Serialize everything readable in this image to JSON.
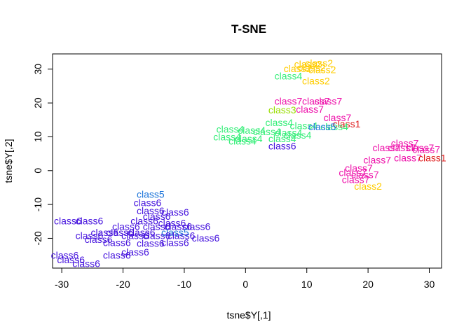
{
  "chart_data": {
    "type": "scatter",
    "title": "T-SNE",
    "xlabel": "tsne$Y[,1]",
    "ylabel": "tsne$Y[,2]",
    "xlim": [
      -31.5,
      32
    ],
    "ylim": [
      -28.8,
      34.5
    ],
    "xticks": [
      -30,
      -20,
      -10,
      0,
      10,
      20,
      30
    ],
    "yticks": [
      -20,
      -10,
      0,
      10,
      20,
      30
    ],
    "grid": false,
    "legend": "none",
    "class_colors": {
      "class1": "#DF1C1C",
      "class2": "#FFCC00",
      "class4": "#33EE77",
      "class5": "#1A73D9",
      "class6": "#4411DD",
      "class7": "#EE11AA",
      "class3": "#99DD00"
    },
    "points": [
      {
        "label": "class2",
        "x": 10.2,
        "y": 31.5,
        "cls": "class2"
      },
      {
        "label": "class2",
        "x": 12.0,
        "y": 31.8,
        "cls": "class2"
      },
      {
        "label": "class2",
        "x": 8.5,
        "y": 30.2,
        "cls": "class2"
      },
      {
        "label": "class2",
        "x": 10.8,
        "y": 30.5,
        "cls": "class2"
      },
      {
        "label": "class2",
        "x": 12.5,
        "y": 29.8,
        "cls": "class2"
      },
      {
        "label": "class2",
        "x": 11.5,
        "y": 26.5,
        "cls": "class2"
      },
      {
        "label": "class4",
        "x": 7.0,
        "y": 28.0,
        "cls": "class4"
      },
      {
        "label": "class7",
        "x": 7.0,
        "y": 20.5,
        "cls": "class7"
      },
      {
        "label": "class7",
        "x": 11.5,
        "y": 20.5,
        "cls": "class7"
      },
      {
        "label": "class7",
        "x": 13.5,
        "y": 20.5,
        "cls": "class7"
      },
      {
        "label": "class7",
        "x": 10.5,
        "y": 18.2,
        "cls": "class7"
      },
      {
        "label": "class3",
        "x": 6.0,
        "y": 18.0,
        "cls": "class3"
      },
      {
        "label": "class7",
        "x": 15.0,
        "y": 15.7,
        "cls": "class7"
      },
      {
        "label": "class1",
        "x": 16.5,
        "y": 13.8,
        "cls": "class1"
      },
      {
        "label": "class4",
        "x": 5.5,
        "y": 14.2,
        "cls": "class4"
      },
      {
        "label": "class4",
        "x": 9.5,
        "y": 13.3,
        "cls": "class4"
      },
      {
        "label": "class4",
        "x": 14.5,
        "y": 13.0,
        "cls": "class4"
      },
      {
        "label": "class5",
        "x": 12.5,
        "y": 13.0,
        "cls": "class5"
      },
      {
        "label": "class4",
        "x": -2.5,
        "y": 12.3,
        "cls": "class4"
      },
      {
        "label": "class4",
        "x": 1.0,
        "y": 12.0,
        "cls": "class4"
      },
      {
        "label": "class4",
        "x": 3.5,
        "y": 11.5,
        "cls": "class4"
      },
      {
        "label": "class4",
        "x": 7.0,
        "y": 11.2,
        "cls": "class4"
      },
      {
        "label": "class4",
        "x": 8.5,
        "y": 10.5,
        "cls": "class4"
      },
      {
        "label": "class4",
        "x": -3.0,
        "y": 10.0,
        "cls": "class4"
      },
      {
        "label": "class4",
        "x": 0.5,
        "y": 9.5,
        "cls": "class4"
      },
      {
        "label": "class4",
        "x": 6.0,
        "y": 9.5,
        "cls": "class4"
      },
      {
        "label": "class4",
        "x": -0.5,
        "y": 8.7,
        "cls": "class4"
      },
      {
        "label": "class6",
        "x": 6.0,
        "y": 7.3,
        "cls": "class6"
      },
      {
        "label": "class7",
        "x": 26.0,
        "y": 8.1,
        "cls": "class7"
      },
      {
        "label": "class7",
        "x": 23.0,
        "y": 6.8,
        "cls": "class7"
      },
      {
        "label": "class7",
        "x": 25.5,
        "y": 6.8,
        "cls": "class7"
      },
      {
        "label": "class7",
        "x": 28.5,
        "y": 6.8,
        "cls": "class7"
      },
      {
        "label": "class7",
        "x": 29.5,
        "y": 6.3,
        "cls": "class7"
      },
      {
        "label": "class7",
        "x": 26.5,
        "y": 3.8,
        "cls": "class7"
      },
      {
        "label": "class1",
        "x": 30.5,
        "y": 3.8,
        "cls": "class1"
      },
      {
        "label": "class7",
        "x": 21.5,
        "y": 3.2,
        "cls": "class7"
      },
      {
        "label": "class7",
        "x": 18.5,
        "y": 0.8,
        "cls": "class7"
      },
      {
        "label": "class7",
        "x": 17.5,
        "y": -0.6,
        "cls": "class7"
      },
      {
        "label": "class7",
        "x": 19.5,
        "y": -1.2,
        "cls": "class7"
      },
      {
        "label": "class7",
        "x": 18.0,
        "y": -2.6,
        "cls": "class7"
      },
      {
        "label": "class2",
        "x": 20.0,
        "y": -4.6,
        "cls": "class2"
      },
      {
        "label": "class5",
        "x": -15.5,
        "y": -7.0,
        "cls": "class5"
      },
      {
        "label": "class6",
        "x": -16.0,
        "y": -9.5,
        "cls": "class6"
      },
      {
        "label": "class6",
        "x": -15.5,
        "y": -11.8,
        "cls": "class6"
      },
      {
        "label": "class6",
        "x": -11.5,
        "y": -12.3,
        "cls": "class6"
      },
      {
        "label": "class6",
        "x": -14.5,
        "y": -13.5,
        "cls": "class6"
      },
      {
        "label": "class6",
        "x": -29.0,
        "y": -14.8,
        "cls": "class6"
      },
      {
        "label": "class6",
        "x": -25.5,
        "y": -14.8,
        "cls": "class6"
      },
      {
        "label": "class6",
        "x": -16.5,
        "y": -14.8,
        "cls": "class6"
      },
      {
        "label": "class6",
        "x": -12.0,
        "y": -15.5,
        "cls": "class6"
      },
      {
        "label": "class6",
        "x": -8.0,
        "y": -16.5,
        "cls": "class6"
      },
      {
        "label": "class6",
        "x": -19.5,
        "y": -16.5,
        "cls": "class6"
      },
      {
        "label": "class6",
        "x": -14.5,
        "y": -16.5,
        "cls": "class6"
      },
      {
        "label": "class6",
        "x": -11.0,
        "y": -16.5,
        "cls": "class6"
      },
      {
        "label": "class6",
        "x": -23.0,
        "y": -18.2,
        "cls": "class6"
      },
      {
        "label": "class6",
        "x": -20.5,
        "y": -18.2,
        "cls": "class6"
      },
      {
        "label": "class6",
        "x": -17.0,
        "y": -18.2,
        "cls": "class6"
      },
      {
        "label": "class5",
        "x": -11.5,
        "y": -18.2,
        "cls": "class5"
      },
      {
        "label": "class6",
        "x": -25.5,
        "y": -19.2,
        "cls": "class6"
      },
      {
        "label": "class6",
        "x": -18.0,
        "y": -19.2,
        "cls": "class6"
      },
      {
        "label": "class6",
        "x": -14.5,
        "y": -19.2,
        "cls": "class6"
      },
      {
        "label": "class6",
        "x": -10.5,
        "y": -19.2,
        "cls": "class6"
      },
      {
        "label": "class6",
        "x": -6.5,
        "y": -19.9,
        "cls": "class6"
      },
      {
        "label": "class6",
        "x": -24.0,
        "y": -20.3,
        "cls": "class6"
      },
      {
        "label": "class6",
        "x": -21.0,
        "y": -21.2,
        "cls": "class6"
      },
      {
        "label": "class6",
        "x": -11.5,
        "y": -21.2,
        "cls": "class6"
      },
      {
        "label": "class6",
        "x": -15.5,
        "y": -21.5,
        "cls": "class6"
      },
      {
        "label": "class6",
        "x": -18.0,
        "y": -24.0,
        "cls": "class6"
      },
      {
        "label": "class6",
        "x": -21.0,
        "y": -25.0,
        "cls": "class6"
      },
      {
        "label": "class6",
        "x": -29.5,
        "y": -25.0,
        "cls": "class6"
      },
      {
        "label": "class6",
        "x": -28.5,
        "y": -26.3,
        "cls": "class6"
      },
      {
        "label": "class6",
        "x": -26.0,
        "y": -27.5,
        "cls": "class6"
      }
    ]
  }
}
